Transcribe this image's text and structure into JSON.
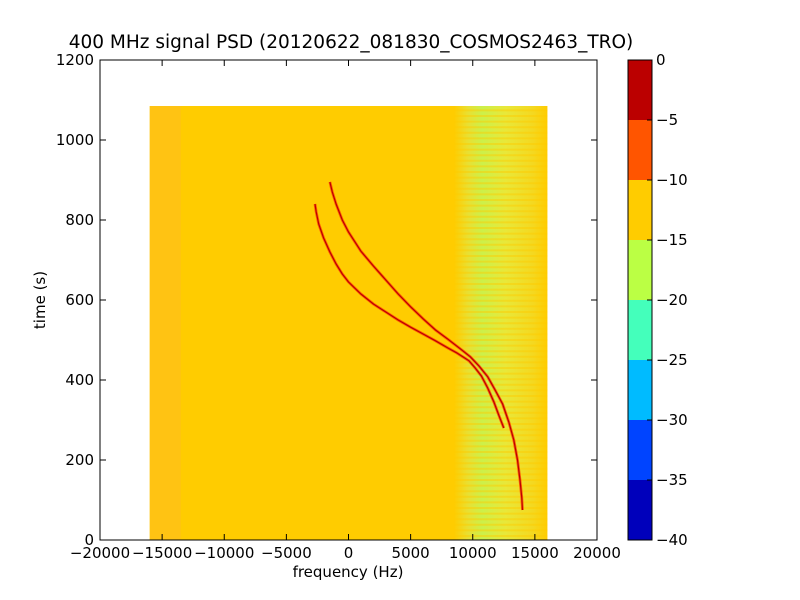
{
  "chart_data": {
    "type": "heatmap",
    "title": "400 MHz signal PSD (20120622_081830_COSMOS2463_TRO)",
    "xlabel": "frequency (Hz)",
    "ylabel": "time (s)",
    "xlim": [
      -20000,
      20000
    ],
    "ylim": [
      0,
      1200
    ],
    "xticks": [
      -20000,
      -15000,
      -10000,
      -5000,
      0,
      5000,
      10000,
      15000,
      20000
    ],
    "xtick_labels": [
      "−20000",
      "−15000",
      "−10000",
      "−5000",
      "0",
      "5000",
      "10000",
      "15000",
      "20000"
    ],
    "yticks": [
      0,
      200,
      400,
      600,
      800,
      1000,
      1200
    ],
    "ytick_labels": [
      "0",
      "200",
      "400",
      "600",
      "800",
      "1000",
      "1200"
    ],
    "data_extent": {
      "x": [
        -16000,
        16000
      ],
      "y": [
        0,
        1085
      ]
    },
    "background_level_db": -12,
    "high_freq_region": {
      "x": [
        8500,
        16000
      ],
      "level_db": -15
    },
    "colorbar": {
      "levels": [
        -40,
        -35,
        -30,
        -25,
        -20,
        -15,
        -10,
        -5,
        0
      ],
      "tick_labels": [
        "−40",
        "−35",
        "−30",
        "−25",
        "−20",
        "−15",
        "−10",
        "−5",
        "0"
      ],
      "colors": [
        "#0000bb",
        "#0044ff",
        "#00bbff",
        "#44ffbb",
        "#bbff44",
        "#ffcc00",
        "#ff5500",
        "#bb0000"
      ]
    },
    "series": [
      {
        "x": [
          -2700,
          -2600,
          -2400,
          -2000,
          -1500,
          -1000,
          -500,
          0,
          1000,
          2000,
          3000,
          4000,
          5000,
          6000,
          7000,
          8000,
          8700,
          9200,
          9700,
          10200,
          10700,
          11200,
          11700,
          12100,
          12500
        ],
        "y": [
          840,
          820,
          790,
          755,
          720,
          690,
          665,
          645,
          615,
          590,
          570,
          550,
          532,
          515,
          498,
          480,
          468,
          458,
          448,
          430,
          410,
          380,
          345,
          312,
          280
        ]
      },
      {
        "x": [
          -1500,
          -1300,
          -1000,
          -500,
          0,
          1000,
          2000,
          3000,
          4000,
          5000,
          6000,
          7000,
          8000,
          9000,
          9800,
          10500,
          11200,
          11800,
          12400,
          12900,
          13300,
          13600,
          13800,
          13950,
          14000
        ],
        "y": [
          895,
          870,
          840,
          800,
          770,
          722,
          685,
          650,
          615,
          583,
          553,
          525,
          502,
          478,
          458,
          435,
          408,
          375,
          340,
          295,
          250,
          200,
          150,
          105,
          75
        ]
      }
    ]
  }
}
